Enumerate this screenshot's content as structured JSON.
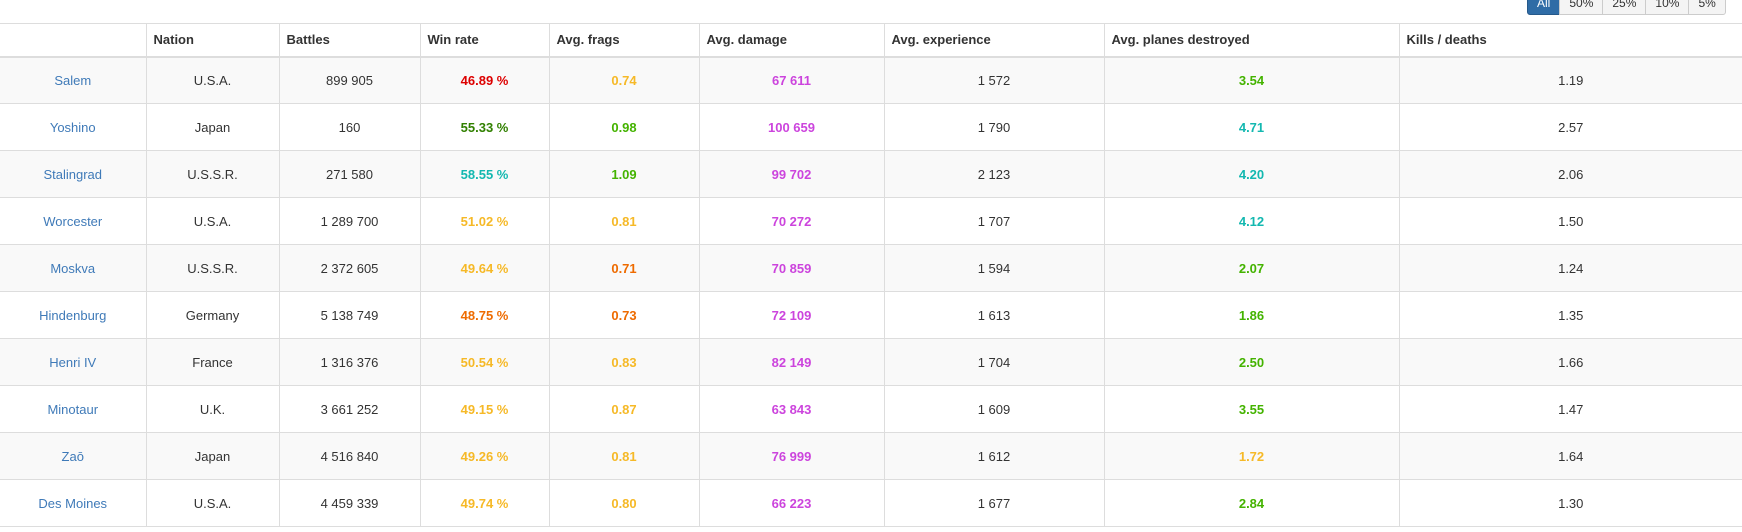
{
  "colors": {
    "red": "#dd0000",
    "dark_green": "#318000",
    "cyan": "#13b8b0",
    "yellow": "#f6b927",
    "orange": "#ee6b00",
    "green": "#44b300",
    "purple": "#cc44dd",
    "link": "#3f7ab8"
  },
  "filters": [
    "All",
    "50%",
    "25%",
    "10%",
    "5%"
  ],
  "table": {
    "headers": [
      "",
      "Nation",
      "Battles",
      "Win rate",
      "Avg. frags",
      "Avg. damage",
      "Avg. experience",
      "Avg. planes destroyed",
      "Kills / deaths"
    ],
    "rows": [
      {
        "ship": "Salem",
        "nation": "U.S.A.",
        "battles": "899 905",
        "win_rate": "46.89 %",
        "win_color": "red",
        "frags": "0.74",
        "frags_color": "yellow",
        "damage": "67 611",
        "experience": "1 572",
        "planes": "3.54",
        "planes_color": "green",
        "kd": "1.19"
      },
      {
        "ship": "Yoshino",
        "nation": "Japan",
        "battles": "160",
        "win_rate": "55.33 %",
        "win_color": "dark_green",
        "frags": "0.98",
        "frags_color": "green",
        "damage": "100 659",
        "experience": "1 790",
        "planes": "4.71",
        "planes_color": "cyan",
        "kd": "2.57"
      },
      {
        "ship": "Stalingrad",
        "nation": "U.S.S.R.",
        "battles": "271 580",
        "win_rate": "58.55 %",
        "win_color": "cyan",
        "frags": "1.09",
        "frags_color": "green",
        "damage": "99 702",
        "experience": "2 123",
        "planes": "4.20",
        "planes_color": "cyan",
        "kd": "2.06"
      },
      {
        "ship": "Worcester",
        "nation": "U.S.A.",
        "battles": "1 289 700",
        "win_rate": "51.02 %",
        "win_color": "yellow",
        "frags": "0.81",
        "frags_color": "yellow",
        "damage": "70 272",
        "experience": "1 707",
        "planes": "4.12",
        "planes_color": "cyan",
        "kd": "1.50"
      },
      {
        "ship": "Moskva",
        "nation": "U.S.S.R.",
        "battles": "2 372 605",
        "win_rate": "49.64 %",
        "win_color": "yellow",
        "frags": "0.71",
        "frags_color": "orange",
        "damage": "70 859",
        "experience": "1 594",
        "planes": "2.07",
        "planes_color": "green",
        "kd": "1.24"
      },
      {
        "ship": "Hindenburg",
        "nation": "Germany",
        "battles": "5 138 749",
        "win_rate": "48.75 %",
        "win_color": "orange",
        "frags": "0.73",
        "frags_color": "orange",
        "damage": "72 109",
        "experience": "1 613",
        "planes": "1.86",
        "planes_color": "green",
        "kd": "1.35"
      },
      {
        "ship": "Henri IV",
        "nation": "France",
        "battles": "1 316 376",
        "win_rate": "50.54 %",
        "win_color": "yellow",
        "frags": "0.83",
        "frags_color": "yellow",
        "damage": "82 149",
        "experience": "1 704",
        "planes": "2.50",
        "planes_color": "green",
        "kd": "1.66"
      },
      {
        "ship": "Minotaur",
        "nation": "U.K.",
        "battles": "3 661 252",
        "win_rate": "49.15 %",
        "win_color": "yellow",
        "frags": "0.87",
        "frags_color": "yellow",
        "damage": "63 843",
        "experience": "1 609",
        "planes": "3.55",
        "planes_color": "green",
        "kd": "1.47"
      },
      {
        "ship": "Zaō",
        "nation": "Japan",
        "battles": "4 516 840",
        "win_rate": "49.26 %",
        "win_color": "yellow",
        "frags": "0.81",
        "frags_color": "yellow",
        "damage": "76 999",
        "experience": "1 612",
        "planes": "1.72",
        "planes_color": "yellow",
        "kd": "1.64"
      },
      {
        "ship": "Des Moines",
        "nation": "U.S.A.",
        "battles": "4 459 339",
        "win_rate": "49.74 %",
        "win_color": "yellow",
        "frags": "0.80",
        "frags_color": "yellow",
        "damage": "66 223",
        "experience": "1 677",
        "planes": "2.84",
        "planes_color": "green",
        "kd": "1.30"
      }
    ]
  }
}
